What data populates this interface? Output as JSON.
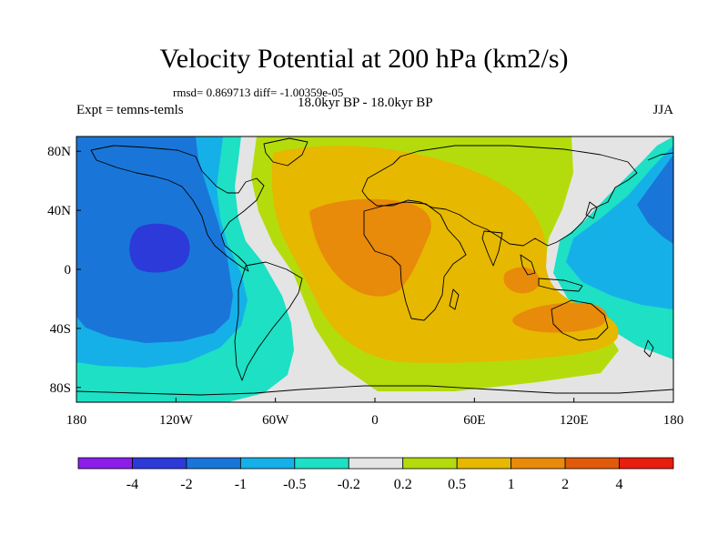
{
  "title": "Velocity Potential at 200 hPa (km2/s)",
  "stats_line": "rmsd= 0.869713 diff= -1.00359e-05",
  "left_label": "Expt = temns-temls",
  "center_label": "18.0kyr BP - 18.0kyr BP",
  "right_label": "JJA",
  "lat_ticks": [
    {
      "label": "80N",
      "value": 80
    },
    {
      "label": "40N",
      "value": 40
    },
    {
      "label": "0",
      "value": 0
    },
    {
      "label": "40S",
      "value": -40
    },
    {
      "label": "80S",
      "value": -80
    }
  ],
  "lon_ticks": [
    {
      "label": "180",
      "value": -180
    },
    {
      "label": "120W",
      "value": -120
    },
    {
      "label": "60W",
      "value": -60
    },
    {
      "label": "0",
      "value": 0
    },
    {
      "label": "60E",
      "value": 60
    },
    {
      "label": "120E",
      "value": 120
    },
    {
      "label": "180",
      "value": 180
    }
  ],
  "colorbar": {
    "colors": [
      "#8b1ee8",
      "#2b3ad8",
      "#1976d8",
      "#16b0e8",
      "#1de0c4",
      "#e4e4e4",
      "#b4dc0c",
      "#e6b800",
      "#e88a0a",
      "#e05a0a",
      "#e81e0e"
    ],
    "labels": [
      "-4",
      "-2",
      "-1",
      "-0.5",
      "-0.2",
      "0.2",
      "0.5",
      "1",
      "2",
      "4"
    ]
  },
  "colors": {
    "background": "#e4e4e4",
    "coast": "#000000"
  }
}
